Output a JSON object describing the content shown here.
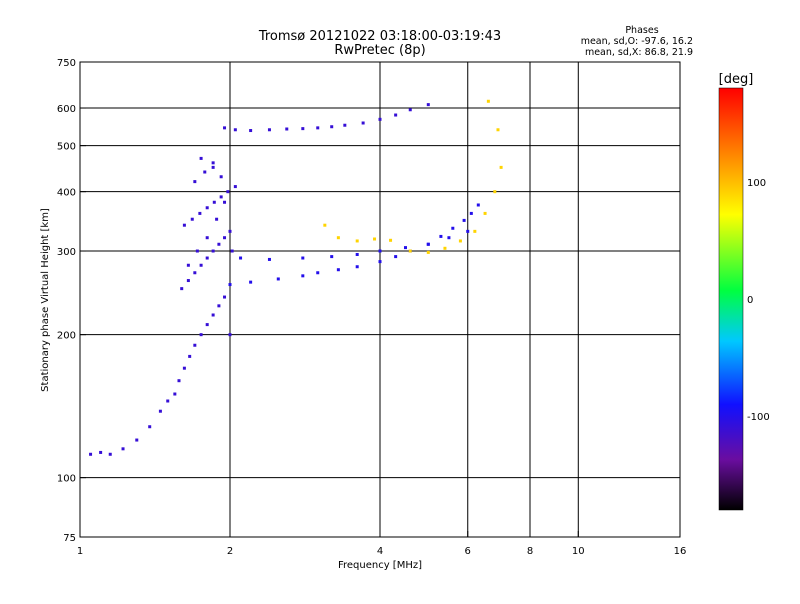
{
  "chart_data": {
    "type": "scatter",
    "title": "Tromsø 20121022 03:18:00-03:19:43",
    "subtitle": "RwPretec (8p)",
    "xlabel": "Frequency [MHz]",
    "ylabel": "Stationary phase Virtual Height [km]",
    "x_scale": "log",
    "y_scale": "log",
    "xlim": [
      1,
      16
    ],
    "ylim": [
      75,
      750
    ],
    "x_ticks": [
      1,
      2,
      4,
      6,
      8,
      10,
      16
    ],
    "y_ticks": [
      75,
      100,
      200,
      300,
      400,
      500,
      600,
      750
    ],
    "x_gridlines": [
      2,
      4,
      6,
      8,
      10
    ],
    "y_gridlines": [
      100,
      200,
      300,
      400,
      500,
      600
    ],
    "phase_stats": {
      "heading": "Phases",
      "line_o": "mean, sd,O: -97.6, 16.2",
      "line_x": "mean, sd,X:  86.8, 21.9"
    },
    "colorbar": {
      "unit": "[deg]",
      "range": [
        -180,
        180
      ],
      "ticks": [
        100,
        0,
        -100
      ],
      "colormap": "rainbow"
    },
    "series": [
      {
        "color_value": -110,
        "x": [
          1.05,
          1.1,
          1.15,
          1.22,
          1.3,
          1.38,
          1.45,
          1.5,
          1.55,
          1.58,
          1.62,
          1.66,
          1.7,
          1.75,
          1.8,
          1.85,
          1.9,
          1.95,
          2.0,
          1.6,
          1.65,
          1.7,
          1.75,
          1.8,
          1.85,
          1.9,
          1.95,
          2.0,
          1.62,
          1.68,
          1.74,
          1.8,
          1.86,
          1.92,
          1.98,
          2.05,
          1.65,
          1.72,
          1.8,
          1.88,
          1.95,
          2.02,
          1.7,
          1.78,
          1.85,
          1.92,
          1.75,
          1.85
        ],
        "y": [
          112,
          113,
          112,
          115,
          120,
          128,
          138,
          145,
          150,
          160,
          170,
          180,
          190,
          200,
          210,
          220,
          230,
          240,
          200,
          250,
          260,
          270,
          280,
          290,
          300,
          310,
          320,
          330,
          340,
          350,
          360,
          370,
          380,
          390,
          400,
          410,
          280,
          300,
          320,
          350,
          380,
          300,
          420,
          440,
          460,
          430,
          470,
          450
        ]
      },
      {
        "color_value": -100,
        "x": [
          2.0,
          2.2,
          2.5,
          2.8,
          3.0,
          3.3,
          3.6,
          4.0,
          4.3,
          4.6,
          5.0,
          5.3,
          5.6,
          5.9,
          6.1,
          6.3,
          2.1,
          2.4,
          2.8,
          3.2,
          3.6,
          4.0,
          4.5,
          5.0,
          5.5,
          6.0
        ],
        "y": [
          255,
          258,
          262,
          266,
          270,
          274,
          278,
          285,
          292,
          300,
          310,
          322,
          335,
          348,
          360,
          375,
          290,
          288,
          290,
          292,
          295,
          300,
          305,
          310,
          320,
          330
        ]
      },
      {
        "color_value": -110,
        "x": [
          1.95,
          2.05,
          2.2,
          2.4,
          2.6,
          2.8,
          3.0,
          3.2,
          3.4,
          3.7,
          4.0,
          4.3,
          4.6,
          5.0
        ],
        "y": [
          545,
          540,
          538,
          540,
          542,
          543,
          545,
          548,
          552,
          558,
          568,
          580,
          595,
          610
        ]
      },
      {
        "color_value": 90,
        "x": [
          3.1,
          3.3,
          3.6,
          3.9,
          4.2,
          4.6,
          5.0,
          5.4,
          5.8,
          6.2,
          6.5,
          6.8,
          7.0,
          6.9,
          6.6
        ],
        "y": [
          340,
          320,
          315,
          318,
          316,
          300,
          298,
          304,
          315,
          330,
          360,
          400,
          450,
          540,
          620
        ]
      }
    ]
  }
}
